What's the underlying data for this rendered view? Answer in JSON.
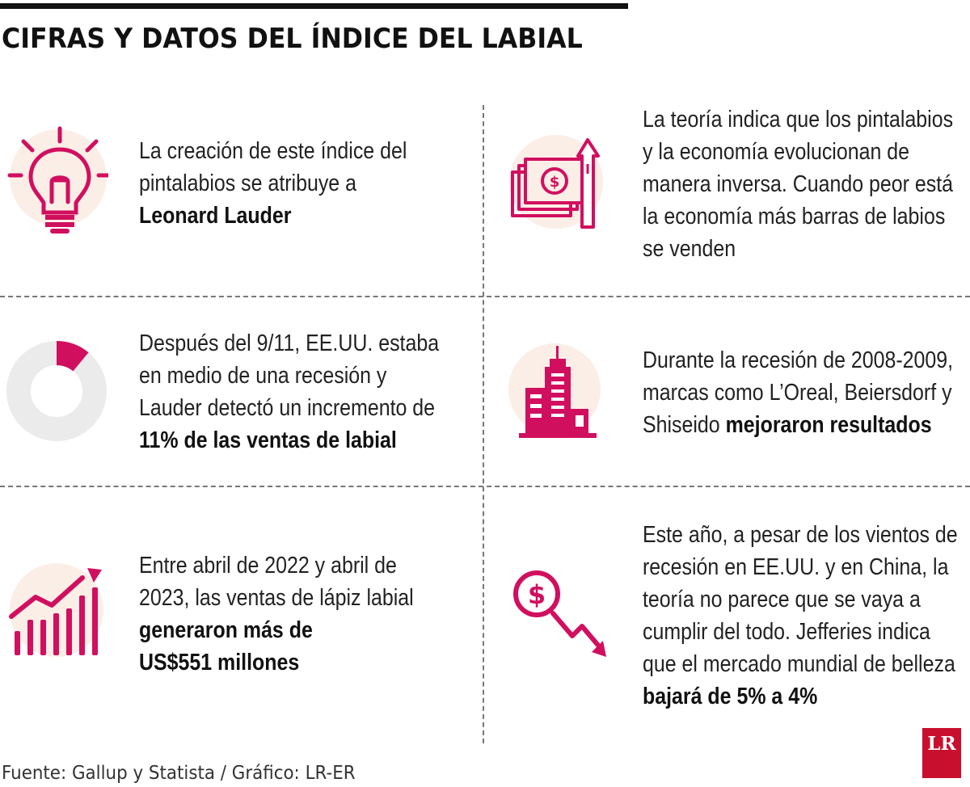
{
  "title": "CIFRAS Y DATOS DEL ÍNDICE DEL LABIAL",
  "colors": {
    "accent": "#d10f5f",
    "circle_bg": "#fbeee7",
    "donut_bg": "#ebebeb"
  },
  "facts": [
    {
      "icon": "lightbulb-icon",
      "lines": [
        "La creación de este índice del",
        "pintalabios se atribuye a"
      ],
      "bold": [
        "Leonard Lauder"
      ]
    },
    {
      "icon": "money-arrow-up-icon",
      "lines": [
        "La teoría indica que los pintalabios",
        "y la economía evolucionan de",
        "manera inversa. Cuando peor está",
        "la economía más barras de labios",
        "se venden"
      ],
      "bold": []
    },
    {
      "icon": "donut-chart-icon",
      "donut_fraction": 0.11,
      "lines": [
        "Después del 9/11, EE.UU. estaba",
        "en medio de una recesión y",
        "Lauder detectó un incremento de"
      ],
      "bold": [
        "11% de las ventas de labial"
      ]
    },
    {
      "icon": "buildings-icon",
      "lines": [
        "Durante la recesión de 2008-2009,",
        "marcas como L’Oreal, Beiersdorf y"
      ],
      "last_plain": "Shiseido",
      "last_bold": "mejoraron resultados"
    },
    {
      "icon": "rising-bars-icon",
      "lines": [
        "Entre abril de 2022 y abril de",
        "2023, las ventas de lápiz labial"
      ],
      "bold": [
        "generaron más de",
        "US$551 millones"
      ]
    },
    {
      "icon": "dollar-down-arrow-icon",
      "lines": [
        "Este año, a pesar de los vientos de",
        "recesión en EE.UU. y en China, la",
        "teoría no parece que se vaya a",
        "cumplir del todo. Jefferies indica",
        "que el mercado mundial de belleza"
      ],
      "bold": [
        "bajará de 5% a 4%"
      ]
    }
  ],
  "source": "Fuente: Gallup y Statista / Gráfico: LR-ER",
  "logo": "LR"
}
